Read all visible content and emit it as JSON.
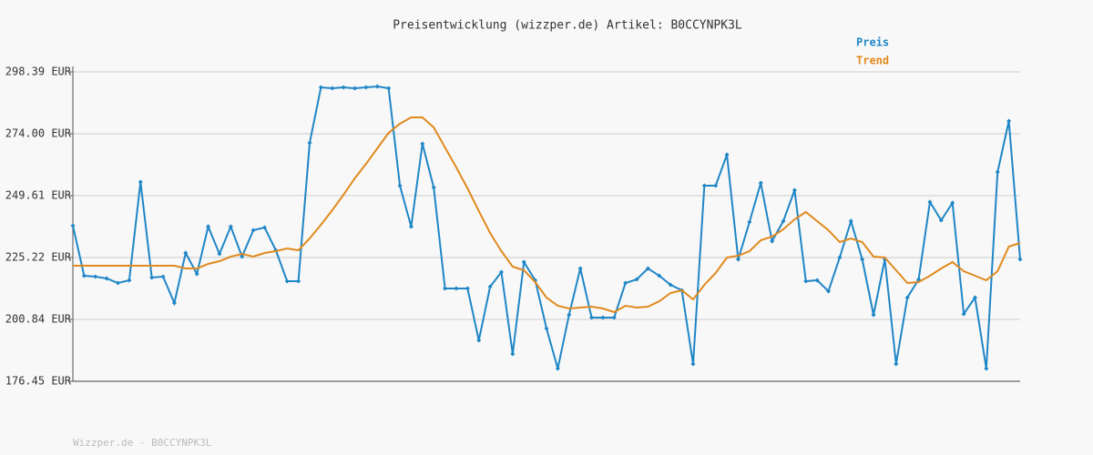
{
  "chart_data": {
    "type": "line",
    "title": "Preisentwicklung (wizzper.de) Artikel: B0CCYNPK3L",
    "footer": "Wizzper.de - B0CCYNPK3L",
    "categories": [
      null,
      null,
      null,
      null,
      null,
      null,
      null,
      null,
      null,
      null,
      null,
      null,
      null,
      null,
      null,
      null,
      null,
      null,
      null,
      null,
      null,
      null,
      null,
      null,
      null,
      null,
      null,
      null,
      null,
      null,
      null,
      null,
      null,
      null,
      null,
      null,
      null,
      null,
      null,
      null,
      null,
      null,
      null,
      null,
      null,
      null,
      null,
      null,
      null,
      null,
      null,
      null,
      null,
      null,
      null,
      null,
      null,
      null,
      null,
      null,
      null,
      null,
      null,
      null,
      null,
      null,
      null,
      null,
      null,
      null,
      null,
      null,
      null,
      null,
      null,
      null,
      null,
      null,
      null,
      null,
      null,
      null,
      null,
      null,
      null
    ],
    "series": [
      {
        "name": "Preis",
        "color": "#1f86c6",
        "markers": true,
        "values": [
          237.78,
          218.05,
          217.69,
          216.98,
          215.18,
          216.26,
          254.99,
          217.34,
          217.69,
          207.29,
          227.02,
          218.77,
          237.42,
          226.66,
          237.42,
          225.58,
          235.98,
          237.06,
          228.09,
          215.9,
          215.9,
          270.42,
          292.29,
          291.93,
          292.29,
          291.93,
          292.29,
          292.65,
          291.93,
          253.56,
          237.42,
          270.06,
          252.84,
          213.03,
          213.03,
          213.03,
          192.59,
          213.75,
          219.49,
          187.21,
          223.43,
          216.26,
          197.25,
          181.47,
          202.63,
          220.92,
          201.55,
          201.55,
          201.55,
          215.18,
          216.62,
          220.92,
          218.05,
          214.47,
          212.31,
          183.26,
          253.56,
          253.56,
          265.75,
          224.51,
          239.21,
          254.63,
          231.68,
          239.57,
          251.77,
          215.9,
          216.26,
          211.96,
          225.23,
          239.57,
          224.51,
          202.63,
          224.51,
          183.26,
          209.44,
          216.62,
          247.1,
          239.93,
          246.74,
          202.99,
          209.44,
          181.47,
          258.94,
          279.02,
          224.51
        ]
      },
      {
        "name": "Trend",
        "color": "#e08a1e",
        "markers": false,
        "values": [
          222.0,
          222.0,
          222.0,
          222.0,
          222.0,
          222.0,
          222.0,
          222.0,
          222.0,
          222.0,
          220.92,
          220.92,
          222.71,
          223.79,
          225.58,
          226.66,
          225.58,
          227.02,
          227.74,
          228.81,
          228.09,
          232.76,
          238.14,
          243.88,
          249.97,
          256.43,
          262.17,
          268.26,
          274.36,
          277.95,
          280.46,
          280.46,
          276.51,
          268.62,
          260.73,
          252.48,
          243.52,
          234.91,
          227.74,
          221.64,
          220.2,
          215.54,
          209.44,
          206.22,
          205.14,
          205.5,
          205.86,
          205.14,
          203.71,
          206.22,
          205.5,
          205.86,
          208.01,
          211.24,
          212.31,
          208.73,
          214.47,
          219.13,
          225.23,
          225.94,
          227.74,
          232.04,
          233.47,
          236.34,
          240.29,
          243.16,
          239.57,
          235.98,
          231.32,
          232.76,
          231.32,
          225.58,
          225.23,
          220.2,
          215.18,
          215.54,
          218.05,
          220.92,
          223.43,
          219.85,
          218.05,
          216.26,
          219.85,
          229.53,
          230.96
        ]
      }
    ],
    "ylim": [
      176.45,
      298.39
    ],
    "yticks": [
      {
        "value": 176.45,
        "label": "176.45 EUR"
      },
      {
        "value": 200.84,
        "label": "200.84 EUR"
      },
      {
        "value": 225.22,
        "label": "225.22 EUR"
      },
      {
        "value": 249.61,
        "label": "249.61 EUR"
      },
      {
        "value": 274.0,
        "label": "274.00 EUR"
      },
      {
        "value": 298.39,
        "label": "298.39 EUR"
      }
    ],
    "grid": true
  }
}
